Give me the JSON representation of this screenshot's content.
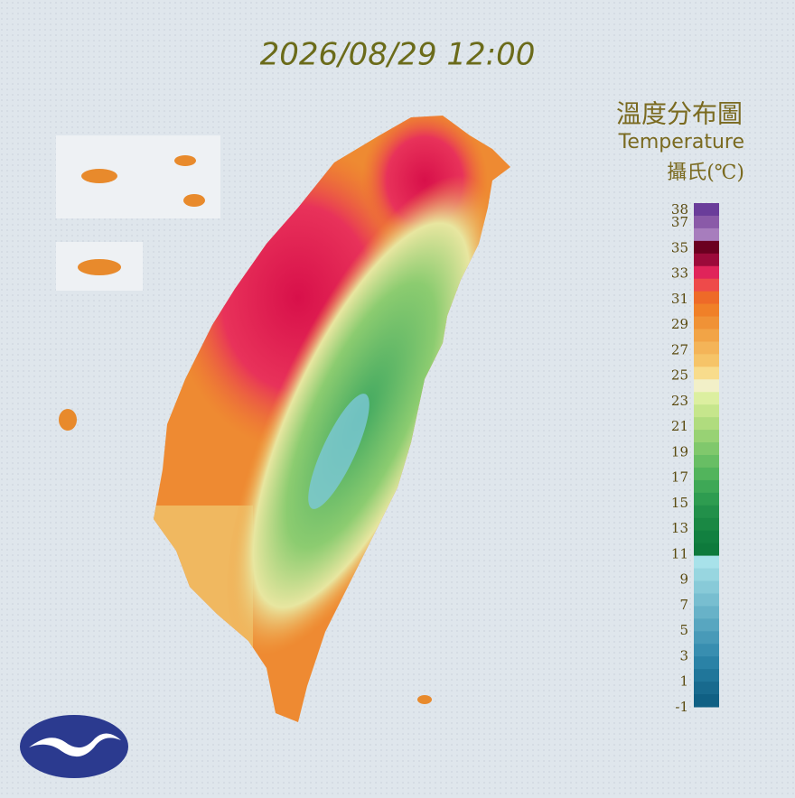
{
  "header": {
    "timestamp": "2026/08/29 12:00"
  },
  "legend": {
    "title": "溫度分布圖",
    "subtitle": "Temperature",
    "unit": "攝氏(℃)",
    "ticks": [
      38,
      37,
      35,
      33,
      31,
      29,
      27,
      25,
      23,
      21,
      19,
      17,
      15,
      13,
      11,
      9,
      7,
      5,
      3,
      1,
      -1
    ],
    "colors": [
      "#6a3d9a",
      "#8a5aa8",
      "#a77dbd",
      "#6b0020",
      "#9c0a3a",
      "#e0245a",
      "#ee4a4a",
      "#ee6a28",
      "#f08028",
      "#f09236",
      "#f2a446",
      "#f4b458",
      "#f6c468",
      "#f8dc8c",
      "#f2f0c8",
      "#dcefa0",
      "#c6e68c",
      "#b0dc7e",
      "#98d274",
      "#80c86c",
      "#68be64",
      "#52b45c",
      "#3ea856",
      "#2e9c50",
      "#22904a",
      "#1a8844",
      "#128040",
      "#0e7a3c",
      "#a8e2ea",
      "#98d6e0",
      "#88cad8",
      "#78bed0",
      "#68b2c8",
      "#58a6c0",
      "#489ab8",
      "#388eb0",
      "#2a82a6",
      "#20769a",
      "#186a8e",
      "#106084"
    ]
  }
}
